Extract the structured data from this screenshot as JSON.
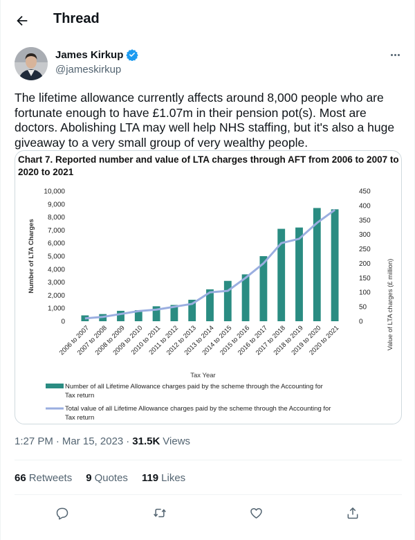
{
  "header": {
    "title": "Thread",
    "back_icon": "arrow-left-icon"
  },
  "author": {
    "name": "James Kirkup",
    "handle": "@jameskirkup",
    "verified": true,
    "verified_color": "#1d9bf0"
  },
  "tweet": {
    "text": "The lifetime allowance currently affects around 8,000 people who are fortunate enough to have £1.07m in their pension pot(s). Most are doctors.  Abolishing LTA may well help NHS staffing, but it's also a huge giveaway to a very small group of very wealthy people.",
    "time": "1:27 PM",
    "date": "Mar 15, 2023",
    "views_count": "31.5K",
    "views_label": "Views"
  },
  "stats": {
    "retweets_count": "66",
    "retweets_label": "Retweets",
    "quotes_count": "9",
    "quotes_label": "Quotes",
    "likes_count": "119",
    "likes_label": "Likes"
  },
  "actions": [
    "reply-icon",
    "retweet-icon",
    "like-icon",
    "share-icon"
  ],
  "colors": {
    "bar": "#2a8c82",
    "line": "#9aaee0",
    "accent": "#1d9bf0"
  },
  "chart_data": {
    "type": "bar",
    "title": "Chart 7. Reported number and value of LTA charges through AFT from 2006 to 2007 to 2020 to 2021",
    "xlabel": "Tax Year",
    "ylabel": "Number of LTA Charges",
    "y2label": "Value of LTA charges (£ million)",
    "ylim": [
      0,
      10000
    ],
    "y2lim": [
      0,
      450
    ],
    "yticks": [
      "0",
      "1,000",
      "2,000",
      "3,000",
      "4,000",
      "5,000",
      "6,000",
      "7,000",
      "8,000",
      "9,000",
      "10,000"
    ],
    "y2ticks": [
      "0",
      "50",
      "100",
      "150",
      "200",
      "250",
      "300",
      "350",
      "400",
      "450"
    ],
    "categories": [
      "2006 to 2007",
      "2007 to 2008",
      "2008 to 2009",
      "2009 to 2010",
      "2010 to 2011",
      "2011 to 2012",
      "2012 to 2013",
      "2013 to 2014",
      "2014 to 2015",
      "2015 to 2016",
      "2016 to 2017",
      "2017 to 2018",
      "2018 to 2019",
      "2019 to 2020",
      "2020 to 2021"
    ],
    "series": [
      {
        "name": "Number of all Lifetime Allowance charges paid by the scheme through the Accounting for Tax return",
        "type": "bar",
        "axis": "left",
        "values": [
          450,
          550,
          800,
          850,
          1150,
          1250,
          1650,
          2450,
          3100,
          3600,
          5000,
          7100,
          7200,
          8700,
          8600
        ]
      },
      {
        "name": "Total value of all Lifetime Allowance charges paid by the scheme through the Accounting for Tax return",
        "type": "line",
        "axis": "right",
        "values": [
          10,
          15,
          25,
          35,
          40,
          50,
          60,
          100,
          105,
          150,
          200,
          270,
          285,
          340,
          385
        ]
      }
    ],
    "legend": "bottom",
    "grid": false
  }
}
